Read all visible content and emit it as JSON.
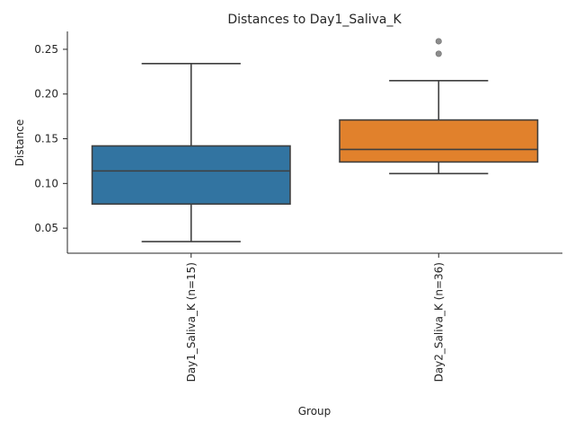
{
  "chart_data": {
    "type": "box",
    "title": "Distances to Day1_Saliva_K",
    "xlabel": "Group",
    "ylabel": "Distance",
    "ylim": [
      0.022,
      0.27
    ],
    "yticks": [
      "0.05",
      "0.10",
      "0.15",
      "0.20",
      "0.25"
    ],
    "grid": false,
    "groups": [
      {
        "label": "Day1_Saliva_K (n=15)",
        "color": "#3274a1",
        "whisker_low": 0.035,
        "q1": 0.077,
        "median": 0.114,
        "q3": 0.142,
        "whisker_high": 0.234,
        "outliers": []
      },
      {
        "label": "Day2_Saliva_K (n=36)",
        "color": "#e1812c",
        "whisker_low": 0.111,
        "q1": 0.124,
        "median": 0.138,
        "q3": 0.171,
        "whisker_high": 0.215,
        "outliers": [
          0.245,
          0.259
        ]
      }
    ]
  }
}
